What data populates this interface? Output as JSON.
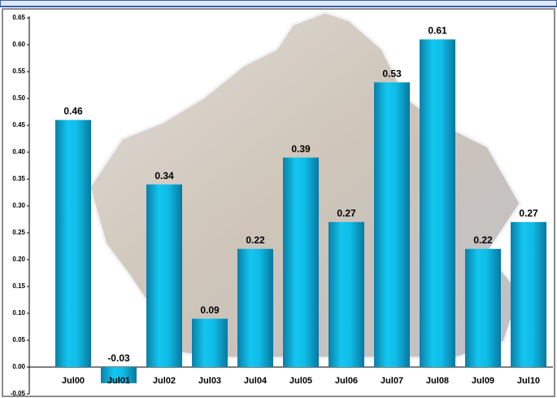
{
  "chart_data": {
    "type": "bar",
    "categories": [
      "Jul00",
      "Jul01",
      "Jul02",
      "Jul03",
      "Jul04",
      "Jul05",
      "Jul06",
      "Jul07",
      "Jul08",
      "Jul09",
      "Jul10"
    ],
    "values": [
      0.46,
      -0.03,
      0.34,
      0.09,
      0.22,
      0.39,
      0.27,
      0.53,
      0.61,
      0.22,
      0.27
    ],
    "color": "#12c6ef",
    "ylim": [
      -0.05,
      0.65
    ],
    "yticks": [
      -0.05,
      {
        "value": 0,
        "label": "0.00"
      },
      0.05,
      {
        "value": 0.1,
        "label": "0.10"
      },
      0.15,
      {
        "value": 0.2,
        "label": "0.20"
      },
      0.25,
      {
        "value": 0.3,
        "label": "0.30"
      },
      0.35,
      {
        "value": 0.4,
        "label": "0.40"
      },
      0.45,
      {
        "value": 0.5,
        "label": "0.50"
      },
      0.55,
      {
        "value": 0.6,
        "label": "0.60"
      },
      0.65
    ],
    "grid": false
  }
}
